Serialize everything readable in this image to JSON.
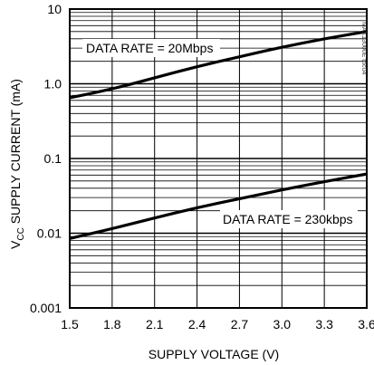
{
  "chart_data": {
    "type": "line",
    "xlabel": "SUPPLY VOLTAGE (V)",
    "ylabel": "V_CC SUPPLY CURRENT (mA)",
    "ylabel_main": "V",
    "ylabel_sub": "CC",
    "ylabel_rest": " SUPPLY CURRENT (mA)",
    "yscale": "log",
    "xlim": [
      1.5,
      3.6
    ],
    "ylim": [
      0.001,
      10
    ],
    "grid": true,
    "x_ticks": [
      "1.5",
      "1.8",
      "2.1",
      "2.4",
      "2.7",
      "3.0",
      "3.3",
      "3.6"
    ],
    "y_ticks": [
      "0.001",
      "0.01",
      "0.1",
      "1.0",
      "10"
    ],
    "part_number": "MAX13000E toc04",
    "series": [
      {
        "name": "DATA RATE = 20Mbps",
        "x": [
          1.5,
          1.8,
          2.1,
          2.4,
          2.7,
          3.0,
          3.3,
          3.6
        ],
        "y": [
          0.65,
          0.85,
          1.2,
          1.7,
          2.3,
          3.1,
          4.0,
          5.0
        ]
      },
      {
        "name": "DATA RATE = 230kbps",
        "x": [
          1.5,
          1.8,
          2.1,
          2.4,
          2.7,
          3.0,
          3.3,
          3.6
        ],
        "y": [
          0.0085,
          0.0115,
          0.016,
          0.022,
          0.029,
          0.038,
          0.049,
          0.062
        ]
      }
    ]
  }
}
